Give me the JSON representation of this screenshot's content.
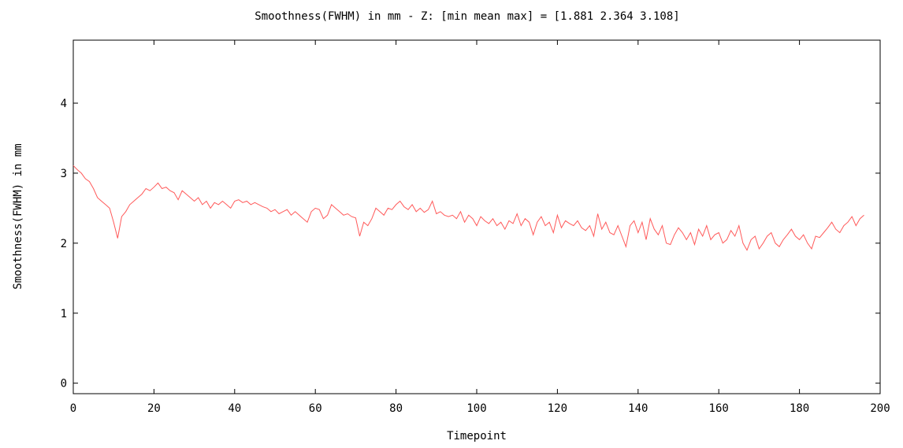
{
  "chart_data": {
    "type": "line",
    "title": "Smoothness(FWHM) in mm - Z: [min mean max] = [1.881 2.364 3.108]",
    "xlabel": "Timepoint",
    "ylabel": "Smoothness(FWHM) in mm",
    "xlim": [
      0,
      200
    ],
    "ylim": [
      -0.15,
      4.9
    ],
    "xticks": [
      0,
      20,
      40,
      60,
      80,
      100,
      120,
      140,
      160,
      180,
      200
    ],
    "yticks": [
      0,
      1,
      2,
      3,
      4
    ],
    "xtick_labels": [
      "0",
      "20",
      "40",
      "60",
      "80",
      "100",
      "120",
      "140",
      "160",
      "180",
      "200"
    ],
    "ytick_labels": [
      "0",
      "1",
      "2",
      "3",
      "4"
    ],
    "grid": false,
    "series": [
      {
        "color": "#ff5a5a",
        "x": [
          0,
          1,
          2,
          3,
          4,
          5,
          6,
          7,
          8,
          9,
          10,
          11,
          12,
          13,
          14,
          15,
          16,
          17,
          18,
          19,
          20,
          21,
          22,
          23,
          24,
          25,
          26,
          27,
          28,
          29,
          30,
          31,
          32,
          33,
          34,
          35,
          36,
          37,
          38,
          39,
          40,
          41,
          42,
          43,
          44,
          45,
          46,
          47,
          48,
          49,
          50,
          51,
          52,
          53,
          54,
          55,
          56,
          57,
          58,
          59,
          60,
          61,
          62,
          63,
          64,
          65,
          66,
          67,
          68,
          69,
          70,
          71,
          72,
          73,
          74,
          75,
          76,
          77,
          78,
          79,
          80,
          81,
          82,
          83,
          84,
          85,
          86,
          87,
          88,
          89,
          90,
          91,
          92,
          93,
          94,
          95,
          96,
          97,
          98,
          99,
          100,
          101,
          102,
          103,
          104,
          105,
          106,
          107,
          108,
          109,
          110,
          111,
          112,
          113,
          114,
          115,
          116,
          117,
          118,
          119,
          120,
          121,
          122,
          123,
          124,
          125,
          126,
          127,
          128,
          129,
          130,
          131,
          132,
          133,
          134,
          135,
          136,
          137,
          138,
          139,
          140,
          141,
          142,
          143,
          144,
          145,
          146,
          147,
          148,
          149,
          150,
          151,
          152,
          153,
          154,
          155,
          156,
          157,
          158,
          159,
          160,
          161,
          162,
          163,
          164,
          165,
          166,
          167,
          168,
          169,
          170,
          171,
          172,
          173,
          174,
          175,
          176,
          177,
          178,
          179,
          180,
          181,
          182,
          183,
          184,
          185,
          186,
          187,
          188,
          189,
          190,
          191,
          192,
          193,
          194,
          195,
          196
        ],
        "y": [
          3.108,
          3.05,
          3.0,
          2.92,
          2.88,
          2.78,
          2.65,
          2.6,
          2.55,
          2.5,
          2.3,
          2.07,
          2.38,
          2.45,
          2.55,
          2.6,
          2.65,
          2.7,
          2.78,
          2.75,
          2.8,
          2.86,
          2.78,
          2.8,
          2.75,
          2.72,
          2.62,
          2.75,
          2.7,
          2.65,
          2.6,
          2.65,
          2.55,
          2.6,
          2.5,
          2.58,
          2.55,
          2.6,
          2.55,
          2.5,
          2.6,
          2.62,
          2.58,
          2.6,
          2.55,
          2.58,
          2.55,
          2.52,
          2.5,
          2.45,
          2.48,
          2.42,
          2.45,
          2.48,
          2.4,
          2.45,
          2.4,
          2.35,
          2.3,
          2.45,
          2.5,
          2.48,
          2.35,
          2.4,
          2.55,
          2.5,
          2.45,
          2.4,
          2.42,
          2.38,
          2.36,
          2.1,
          2.3,
          2.25,
          2.35,
          2.5,
          2.45,
          2.4,
          2.5,
          2.48,
          2.55,
          2.6,
          2.52,
          2.48,
          2.55,
          2.45,
          2.5,
          2.44,
          2.48,
          2.6,
          2.42,
          2.45,
          2.4,
          2.38,
          2.4,
          2.35,
          2.45,
          2.3,
          2.4,
          2.35,
          2.25,
          2.38,
          2.32,
          2.28,
          2.35,
          2.25,
          2.3,
          2.2,
          2.32,
          2.28,
          2.42,
          2.25,
          2.35,
          2.3,
          2.12,
          2.3,
          2.38,
          2.25,
          2.3,
          2.15,
          2.4,
          2.22,
          2.32,
          2.28,
          2.25,
          2.32,
          2.22,
          2.18,
          2.25,
          2.1,
          2.42,
          2.2,
          2.3,
          2.15,
          2.12,
          2.25,
          2.1,
          1.95,
          2.25,
          2.32,
          2.15,
          2.3,
          2.05,
          2.35,
          2.2,
          2.12,
          2.25,
          2.0,
          1.98,
          2.12,
          2.22,
          2.15,
          2.05,
          2.15,
          1.98,
          2.2,
          2.1,
          2.25,
          2.05,
          2.12,
          2.15,
          2.0,
          2.05,
          2.18,
          2.1,
          2.25,
          2.0,
          1.9,
          2.05,
          2.1,
          1.92,
          2.0,
          2.1,
          2.15,
          2.0,
          1.95,
          2.05,
          2.12,
          2.2,
          2.1,
          2.05,
          2.12,
          2.0,
          1.92,
          2.1,
          2.08,
          2.15,
          2.22,
          2.3,
          2.2,
          2.15,
          2.25,
          2.3,
          2.38,
          2.25,
          2.35,
          2.4
        ]
      }
    ]
  }
}
